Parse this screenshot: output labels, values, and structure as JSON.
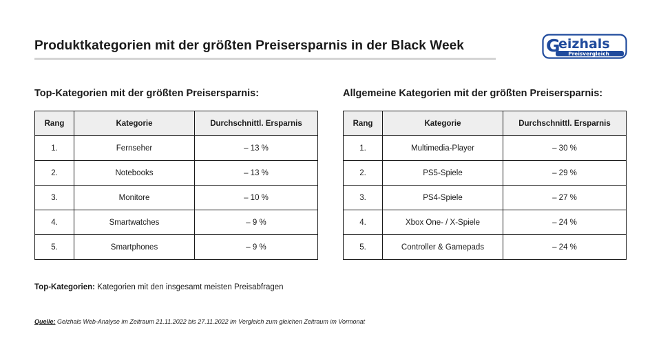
{
  "header": {
    "title": "Produktkategorien mit der größten Preisersparnis in der Black Week",
    "logo": {
      "name": "Geizhals",
      "tagline": "Preisvergleich",
      "color": "#1f4a9c"
    }
  },
  "left_table": {
    "title": "Top-Kategorien mit der größten Preisersparnis:",
    "columns": [
      "Rang",
      "Kategorie",
      "Durchschnittl. Ersparnis"
    ],
    "rows": [
      {
        "rank": "1.",
        "category": "Fernseher",
        "saving": "– 13 %"
      },
      {
        "rank": "2.",
        "category": "Notebooks",
        "saving": "– 13 %"
      },
      {
        "rank": "3.",
        "category": "Monitore",
        "saving": "– 10 %"
      },
      {
        "rank": "4.",
        "category": "Smartwatches",
        "saving": "– 9 %"
      },
      {
        "rank": "5.",
        "category": "Smartphones",
        "saving": "– 9 %"
      }
    ]
  },
  "right_table": {
    "title": "Allgemeine Kategorien mit der größten Preisersparnis:",
    "columns": [
      "Rang",
      "Kategorie",
      "Durchschnittl. Ersparnis"
    ],
    "rows": [
      {
        "rank": "1.",
        "category": "Multimedia-Player",
        "saving": "– 30 %"
      },
      {
        "rank": "2.",
        "category": "PS5-Spiele",
        "saving": "– 29 %"
      },
      {
        "rank": "3.",
        "category": "PS4-Spiele",
        "saving": "– 27 %"
      },
      {
        "rank": "4.",
        "category": "Xbox One- / X-Spiele",
        "saving": "– 24 %"
      },
      {
        "rank": "5.",
        "category": "Controller & Gamepads",
        "saving": "– 24 %"
      }
    ]
  },
  "note": {
    "label": "Top-Kategorien:",
    "text": " Kategorien mit den insgesamt meisten Preisabfragen"
  },
  "source": {
    "label": "Quelle:",
    "text": " Geizhals Web-Analyse im Zeitraum 21.11.2022 bis 27.11.2022 im Vergleich zum gleichen Zeitraum im Vormonat"
  }
}
